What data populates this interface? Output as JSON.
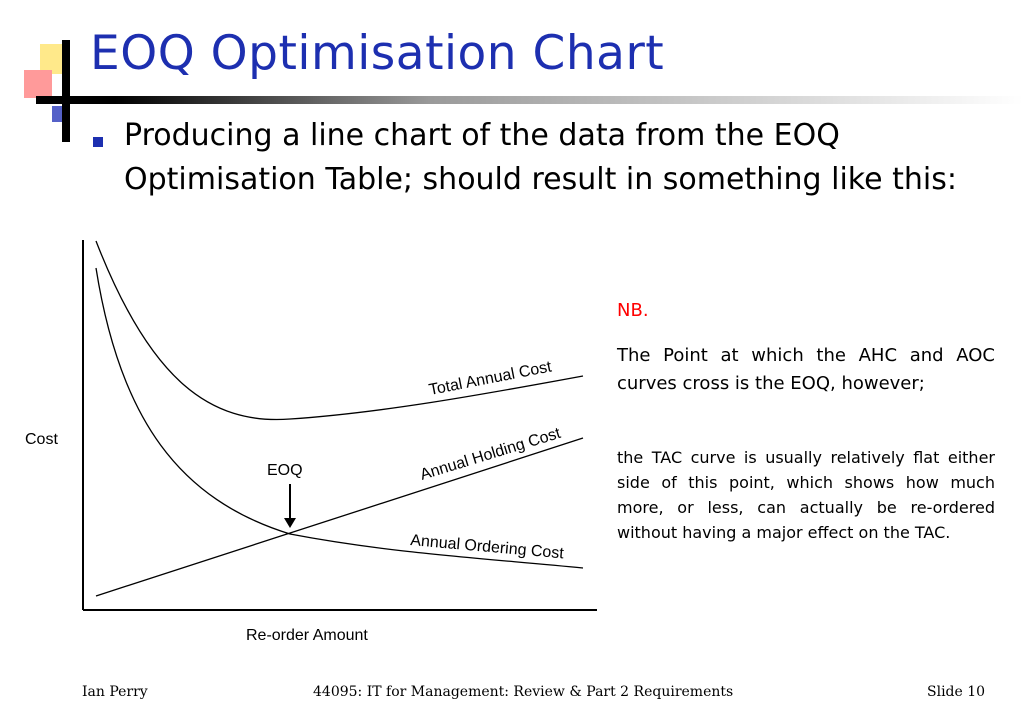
{
  "slide": {
    "title": "EOQ Optimisation Chart",
    "bullet": "Producing a line chart of the data from the EOQ Optimisation Table; should result in something like this:",
    "accent_color": "#1d2fb0"
  },
  "notes": {
    "title": "NB.",
    "title_color": "#ff0000",
    "paragraph1": "The Point at which the AHC and AOC curves cross is the EOQ, however;",
    "paragraph2": "the TAC curve is usually relatively flat either side of this point, which shows how much more, or less, can actually be re-ordered without having a major effect on the TAC."
  },
  "chart_data": {
    "type": "line",
    "xlabel": "Re-order Amount",
    "ylabel": "Cost",
    "series": [
      {
        "name": "Total Annual Cost"
      },
      {
        "name": "Annual Holding Cost"
      },
      {
        "name": "Annual Ordering Cost"
      }
    ],
    "annotation": "EOQ",
    "grid": false
  },
  "footer": {
    "left": "Ian Perry",
    "center": "44095: IT for Management: Review & Part 2 Requirements",
    "right": "Slide 10"
  }
}
